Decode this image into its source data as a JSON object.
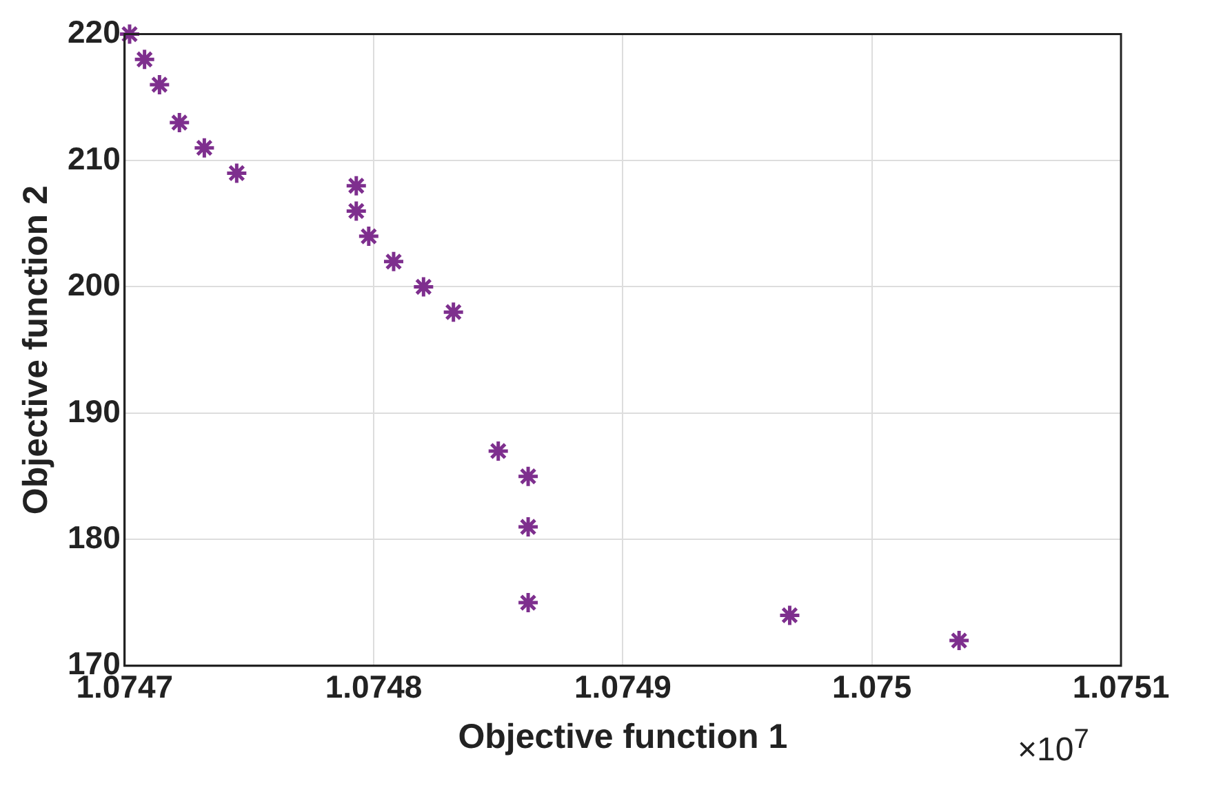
{
  "chart_data": {
    "type": "scatter",
    "xlabel": "Objective function 1",
    "ylabel": "Objective function 2",
    "x": [
      1.074702,
      1.074708,
      1.074714,
      1.074722,
      1.074732,
      1.074745,
      1.074793,
      1.074793,
      1.074798,
      1.074808,
      1.07482,
      1.074832,
      1.07485,
      1.074862,
      1.074862,
      1.074862,
      1.074967,
      1.075035
    ],
    "series": [
      {
        "color": "#7e2f8e",
        "values": [
          220,
          218,
          216,
          213,
          211,
          209,
          208,
          206,
          204,
          202,
          200,
          198,
          187,
          185,
          181,
          175,
          174,
          172
        ]
      }
    ],
    "xlim": [
      1.0747,
      1.0751
    ],
    "xticks": [
      1.0747,
      1.0748,
      1.0749,
      1.075,
      1.0751
    ],
    "ylim": [
      170,
      220
    ],
    "yticks": [
      170,
      180,
      190,
      200,
      210,
      220
    ],
    "annotations": [
      "×10$^{7}$"
    ],
    "grid": true,
    "legend": false
  }
}
